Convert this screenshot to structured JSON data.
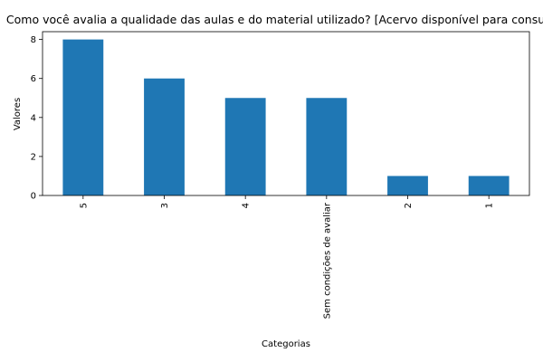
{
  "chart_data": {
    "type": "bar",
    "title": "Como você avalia a qualidade das aulas e do material utilizado?  [Acervo disponível para consulta]",
    "xlabel": "Categorias",
    "ylabel": "Valores",
    "categories": [
      "5",
      "3",
      "4",
      "Sem condições de avaliar",
      "2",
      "1"
    ],
    "values": [
      8,
      6,
      5,
      5,
      1,
      1
    ],
    "ylim": [
      0,
      8.4
    ],
    "yticks": [
      0,
      2,
      4,
      6,
      8
    ],
    "bar_color": "#1f77b4",
    "grid": false,
    "legend": "none"
  }
}
